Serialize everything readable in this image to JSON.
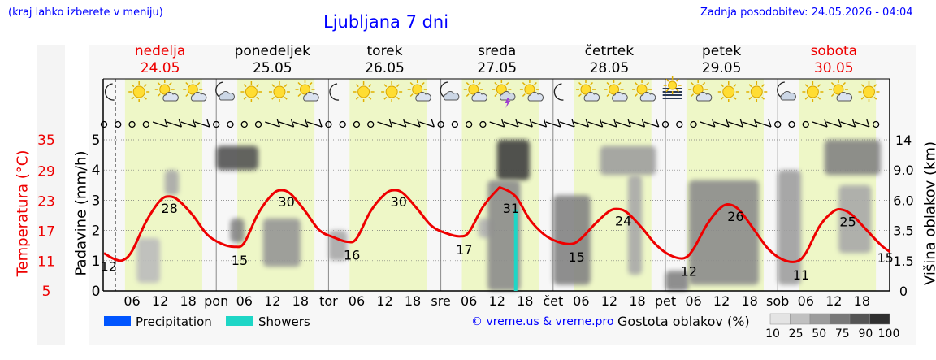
{
  "header": {
    "note": "(kraj lahko izberete v meniju)",
    "title": "Ljubljana 7 dni",
    "updated": "Zadnja posodobitev: 24.05.2026 - 04:04"
  },
  "footer": {
    "legend_precip": "Precipitation",
    "legend_showers": "Showers",
    "copyright": "© vreme.us & vreme.pro",
    "cloud_title": "Gostota oblakov (%)",
    "cloud_scale": [
      "10",
      "25",
      "50",
      "75",
      "90",
      "100"
    ]
  },
  "colors": {
    "temperature": "#ee0000",
    "day_band": "#eef7c7",
    "precipitation": "#0055ff",
    "showers": "#1ed6c6",
    "header_blue": "#0000ff",
    "weekend": "#ee0000"
  },
  "chart_data": {
    "type": "line",
    "days": [
      {
        "name": "nedelja",
        "date": "24.05",
        "weekend": true,
        "abbr": ""
      },
      {
        "name": "ponedeljek",
        "date": "25.05",
        "weekend": false,
        "abbr": "pon"
      },
      {
        "name": "torek",
        "date": "26.05",
        "weekend": false,
        "abbr": "tor"
      },
      {
        "name": "sreda",
        "date": "27.05",
        "weekend": false,
        "abbr": "sre"
      },
      {
        "name": "četrtek",
        "date": "28.05",
        "weekend": false,
        "abbr": "čet"
      },
      {
        "name": "petek",
        "date": "29.05",
        "weekend": false,
        "abbr": "pet"
      },
      {
        "name": "sobota",
        "date": "30.05",
        "weekend": true,
        "abbr": "sob"
      }
    ],
    "hour_ticks": [
      "06",
      "12",
      "18"
    ],
    "left_axis_temperature": {
      "label": "Temperatura (°C)",
      "ticks": [
        "35",
        "29",
        "23",
        "17",
        "11",
        "5"
      ]
    },
    "left_axis_precip": {
      "label": "Padavine (mm/h)",
      "ticks": [
        "5",
        "4",
        "3",
        "2",
        "1",
        "0"
      ],
      "range": [
        0,
        5
      ]
    },
    "right_axis_cloud": {
      "label": "Višina oblakov (km)",
      "ticks": [
        "14",
        "9.0",
        "6.0",
        "3.5",
        "1.5",
        "0"
      ]
    },
    "temperature_labels": [
      {
        "day": 0,
        "hour": 1,
        "value": "12"
      },
      {
        "day": 0,
        "hour": 14,
        "value": "28"
      },
      {
        "day": 1,
        "hour": 5,
        "value": "15"
      },
      {
        "day": 1,
        "hour": 15,
        "value": "30"
      },
      {
        "day": 2,
        "hour": 5,
        "value": "16"
      },
      {
        "day": 2,
        "hour": 15,
        "value": "30"
      },
      {
        "day": 3,
        "hour": 5,
        "value": "17"
      },
      {
        "day": 3,
        "hour": 15,
        "value": "31"
      },
      {
        "day": 4,
        "hour": 5,
        "value": "15"
      },
      {
        "day": 4,
        "hour": 15,
        "value": "24"
      },
      {
        "day": 5,
        "hour": 5,
        "value": "12"
      },
      {
        "day": 5,
        "hour": 15,
        "value": "26"
      },
      {
        "day": 6,
        "hour": 5,
        "value": "11"
      },
      {
        "day": 6,
        "hour": 15,
        "value": "25"
      },
      {
        "day": 6,
        "hour": 23,
        "value": "15"
      }
    ],
    "temperature_series": {
      "unit": "°C",
      "points": [
        [
          0,
          0,
          14.0
        ],
        [
          0,
          2,
          12.7
        ],
        [
          0,
          4,
          12.3
        ],
        [
          0,
          6,
          14.5
        ],
        [
          0,
          9,
          21.5
        ],
        [
          0,
          12,
          26.5
        ],
        [
          0,
          14,
          27.5
        ],
        [
          0,
          16,
          26.5
        ],
        [
          0,
          19,
          23.0
        ],
        [
          0,
          22,
          18.5
        ],
        [
          1,
          1,
          16.3
        ],
        [
          1,
          4,
          15.5
        ],
        [
          1,
          6,
          16.5
        ],
        [
          1,
          9,
          23.5
        ],
        [
          1,
          12,
          28.0
        ],
        [
          1,
          14,
          29.0
        ],
        [
          1,
          16,
          28.0
        ],
        [
          1,
          19,
          24.0
        ],
        [
          1,
          22,
          19.5
        ],
        [
          2,
          1,
          17.8
        ],
        [
          2,
          4,
          16.7
        ],
        [
          2,
          6,
          17.5
        ],
        [
          2,
          9,
          24.0
        ],
        [
          2,
          12,
          28.0
        ],
        [
          2,
          14,
          29.0
        ],
        [
          2,
          16,
          28.2
        ],
        [
          2,
          19,
          24.5
        ],
        [
          2,
          22,
          20.5
        ],
        [
          3,
          1,
          18.8
        ],
        [
          3,
          4,
          18.0
        ],
        [
          3,
          6,
          19.0
        ],
        [
          3,
          9,
          25.0
        ],
        [
          3,
          12,
          29.0
        ],
        [
          3,
          13,
          29.5
        ],
        [
          3,
          16,
          27.5
        ],
        [
          3,
          19,
          22.0
        ],
        [
          3,
          22,
          18.5
        ],
        [
          4,
          1,
          16.7
        ],
        [
          4,
          4,
          16.2
        ],
        [
          4,
          6,
          17.5
        ],
        [
          4,
          9,
          21.0
        ],
        [
          4,
          12,
          24.0
        ],
        [
          4,
          14,
          24.5
        ],
        [
          4,
          16,
          23.5
        ],
        [
          4,
          19,
          20.0
        ],
        [
          4,
          22,
          16.0
        ],
        [
          5,
          1,
          13.5
        ],
        [
          5,
          4,
          12.8
        ],
        [
          5,
          6,
          15.0
        ],
        [
          5,
          9,
          21.0
        ],
        [
          5,
          12,
          25.0
        ],
        [
          5,
          14,
          25.5
        ],
        [
          5,
          16,
          24.0
        ],
        [
          5,
          19,
          19.5
        ],
        [
          5,
          22,
          15.0
        ],
        [
          6,
          1,
          12.5
        ],
        [
          6,
          4,
          12.0
        ],
        [
          6,
          6,
          14.0
        ],
        [
          6,
          9,
          20.5
        ],
        [
          6,
          12,
          24.0
        ],
        [
          6,
          14,
          24.3
        ],
        [
          6,
          16,
          23.0
        ],
        [
          6,
          19,
          19.5
        ],
        [
          6,
          22,
          16.0
        ],
        [
          6,
          24,
          14.3
        ]
      ]
    },
    "showers": [
      {
        "day": 3,
        "hour": 16,
        "mm_h": 2.7
      }
    ],
    "sky_icons": [
      [
        "moon-icon",
        "sun-icon",
        "sun-cloud-icon",
        "sun-cloud-icon"
      ],
      [
        "moon-cloud-icon",
        "sun-icon",
        "sun-icon",
        "sun-cloud-icon"
      ],
      [
        "moon-icon",
        "sun-icon",
        "sun-icon",
        "sun-cloud-icon"
      ],
      [
        "moon-cloud-icon",
        "sun-cloud-icon",
        "thunder-cloud-icon",
        "sun-cloud-icon"
      ],
      [
        "moon-icon",
        "sun-cloud-icon",
        "sun-cloud-icon",
        "sun-cloud-icon"
      ],
      [
        "fog-icon",
        "sun-cloud-icon",
        "sun-icon",
        "sun-icon"
      ],
      [
        "moon-cloud-icon",
        "sun-icon",
        "sun-cloud-icon",
        "sun-icon"
      ]
    ],
    "wind_symbols": [
      [
        "calm",
        "calm",
        "calm",
        "calm",
        "barb",
        "barb",
        "barb",
        "barb"
      ],
      [
        "calm",
        "calm",
        "calm",
        "calm",
        "barb",
        "barb",
        "barb",
        "barb"
      ],
      [
        "calm",
        "calm",
        "calm",
        "calm",
        "barb",
        "barb",
        "barb",
        "barb"
      ],
      [
        "calm",
        "calm",
        "calm",
        "calm",
        "barb",
        "barb",
        "barb",
        "barb"
      ],
      [
        "barb",
        "barb",
        "barb",
        "barb",
        "barb",
        "barb",
        "barb",
        "barb"
      ],
      [
        "calm",
        "calm",
        "calm",
        "barb",
        "barb",
        "barb",
        "barb",
        "barb"
      ],
      [
        "calm",
        "calm",
        "calm",
        "barb",
        "barb",
        "barb",
        "barb",
        "calm"
      ]
    ],
    "cloud_blobs": [
      {
        "day": 0,
        "h0": 13,
        "h1": 16,
        "km0": 6.5,
        "km1": 9.0,
        "density": 35
      },
      {
        "day": 0,
        "h0": 7,
        "h1": 12,
        "km0": 0.4,
        "km1": 3.0,
        "density": 25
      },
      {
        "day": 1,
        "h0": 0,
        "h1": 9,
        "km0": 9.0,
        "km1": 13.0,
        "density": 80
      },
      {
        "day": 1,
        "h0": 3,
        "h1": 6,
        "km0": 2.7,
        "km1": 4.5,
        "density": 55
      },
      {
        "day": 1,
        "h0": 10,
        "h1": 18,
        "km0": 1.2,
        "km1": 4.5,
        "density": 45
      },
      {
        "day": 2,
        "h0": 0,
        "h1": 4,
        "km0": 1.5,
        "km1": 3.5,
        "density": 35
      },
      {
        "day": 3,
        "h0": 8,
        "h1": 11,
        "km0": 3.0,
        "km1": 4.5,
        "density": 30
      },
      {
        "day": 3,
        "h0": 12,
        "h1": 19,
        "km0": 8.0,
        "km1": 14.0,
        "density": 90
      },
      {
        "day": 3,
        "h0": 10,
        "h1": 17,
        "km0": 0.0,
        "km1": 8.0,
        "density": 50
      },
      {
        "day": 4,
        "h0": 0,
        "h1": 8,
        "km0": 0.3,
        "km1": 6.5,
        "density": 55
      },
      {
        "day": 4,
        "h0": 10,
        "h1": 22,
        "km0": 8.5,
        "km1": 13.0,
        "density": 40
      },
      {
        "day": 4,
        "h0": 16,
        "h1": 19,
        "km0": 0.8,
        "km1": 8.5,
        "density": 35
      },
      {
        "day": 5,
        "h0": 0,
        "h1": 5,
        "km0": 0.0,
        "km1": 1.0,
        "density": 55
      },
      {
        "day": 5,
        "h0": 5,
        "h1": 20,
        "km0": 0.3,
        "km1": 8.0,
        "density": 50
      },
      {
        "day": 6,
        "h0": 0,
        "h1": 5,
        "km0": 0.3,
        "km1": 9.0,
        "density": 40
      },
      {
        "day": 6,
        "h0": 10,
        "h1": 22,
        "km0": 8.5,
        "km1": 14.0,
        "density": 55
      },
      {
        "day": 6,
        "h0": 13,
        "h1": 20,
        "km0": 2.0,
        "km1": 7.5,
        "density": 35
      }
    ]
  }
}
